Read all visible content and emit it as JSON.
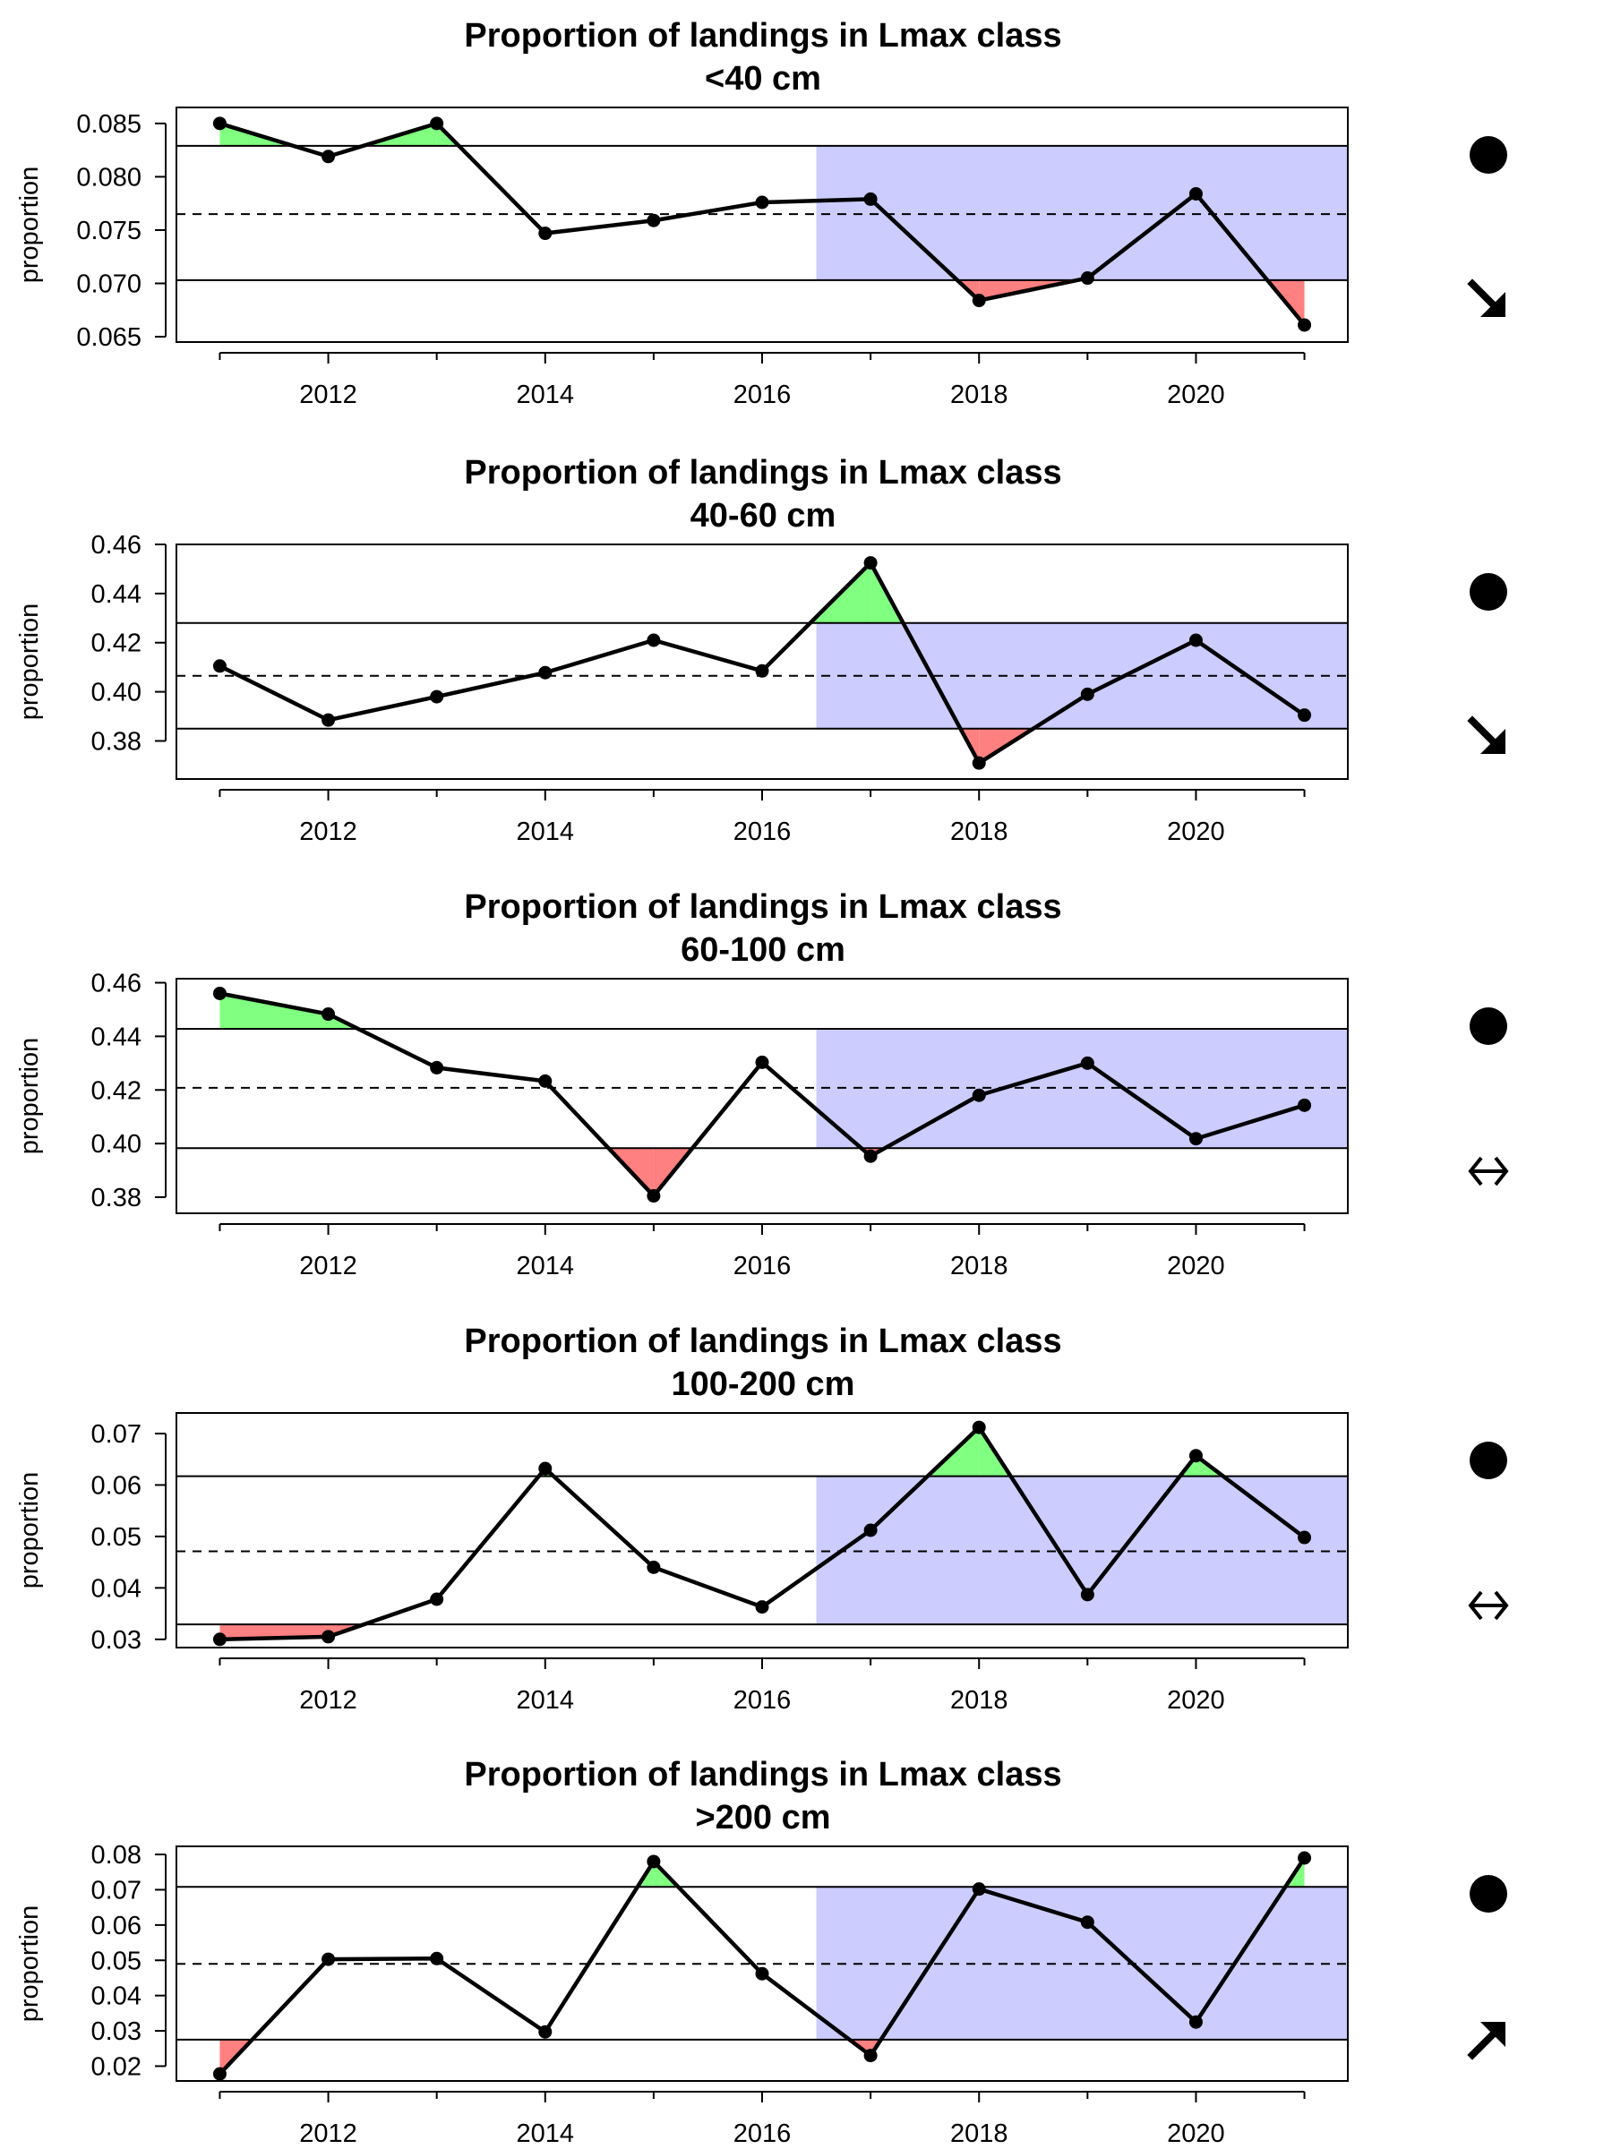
{
  "chart_data": [
    {
      "type": "line",
      "title": "Proportion of landings in Lmax class",
      "subtitle": "<40 cm",
      "ylabel": "proportion",
      "x": [
        2011,
        2012,
        2013,
        2014,
        2015,
        2016,
        2017,
        2018,
        2019,
        2020,
        2021
      ],
      "values": [
        0.085,
        0.0819,
        0.085,
        0.0747,
        0.0759,
        0.0776,
        0.0779,
        0.0684,
        0.0705,
        0.0784,
        0.0661
      ],
      "mean": 0.0765,
      "upper": 0.0829,
      "lower": 0.0703,
      "ylim": [
        0.0645,
        0.0865
      ],
      "yticks": [
        "0.085",
        "0.080",
        "0.075",
        "0.070",
        "0.065"
      ],
      "ytick_values": [
        0.085,
        0.08,
        0.075,
        0.07,
        0.065
      ],
      "xticks": [
        "2012",
        "2014",
        "2016",
        "2018",
        "2020"
      ],
      "xtick_values": [
        2012,
        2014,
        2016,
        2018,
        2020
      ],
      "shade_from": 2016.5,
      "status_icon": "filled-circle",
      "trend_icon": "arrow-down-right-icon"
    },
    {
      "type": "line",
      "title": "Proportion of landings in Lmax class",
      "subtitle": "40-60 cm",
      "ylabel": "proportion",
      "x": [
        2011,
        2012,
        2013,
        2014,
        2015,
        2016,
        2017,
        2018,
        2019,
        2020,
        2021
      ],
      "values": [
        0.4105,
        0.3885,
        0.398,
        0.4078,
        0.421,
        0.4085,
        0.4525,
        0.371,
        0.399,
        0.421,
        0.3905
      ],
      "mean": 0.4065,
      "upper": 0.428,
      "lower": 0.385,
      "ylim": [
        0.3645,
        0.46
      ],
      "yticks": [
        "0.46",
        "0.44",
        "0.42",
        "0.40",
        "0.38"
      ],
      "ytick_values": [
        0.46,
        0.44,
        0.42,
        0.4,
        0.38
      ],
      "xticks": [
        "2012",
        "2014",
        "2016",
        "2018",
        "2020"
      ],
      "xtick_values": [
        2012,
        2014,
        2016,
        2018,
        2020
      ],
      "shade_from": 2016.5,
      "status_icon": "filled-circle",
      "trend_icon": "arrow-down-right-icon"
    },
    {
      "type": "line",
      "title": "Proportion of landings in Lmax class",
      "subtitle": "60-100 cm",
      "ylabel": "proportion",
      "x": [
        2011,
        2012,
        2013,
        2014,
        2015,
        2016,
        2017,
        2018,
        2019,
        2020,
        2021
      ],
      "values": [
        0.456,
        0.4483,
        0.4283,
        0.4233,
        0.3805,
        0.4303,
        0.3953,
        0.418,
        0.43,
        0.4018,
        0.4143
      ],
      "mean": 0.4208,
      "upper": 0.4428,
      "lower": 0.3983,
      "ylim": [
        0.374,
        0.4615
      ],
      "yticks": [
        "0.46",
        "0.44",
        "0.42",
        "0.40",
        "0.38"
      ],
      "ytick_values": [
        0.46,
        0.44,
        0.42,
        0.4,
        0.38
      ],
      "xticks": [
        "2012",
        "2014",
        "2016",
        "2018",
        "2020"
      ],
      "xtick_values": [
        2012,
        2014,
        2016,
        2018,
        2020
      ],
      "shade_from": 2016.5,
      "status_icon": "filled-circle",
      "trend_icon": "no-trend-arrows-icon"
    },
    {
      "type": "line",
      "title": "Proportion of landings in Lmax class",
      "subtitle": "100-200 cm",
      "ylabel": "proportion",
      "x": [
        2011,
        2012,
        2013,
        2014,
        2015,
        2016,
        2017,
        2018,
        2019,
        2020,
        2021
      ],
      "values": [
        0.03,
        0.0305,
        0.0378,
        0.0632,
        0.044,
        0.0363,
        0.0512,
        0.0712,
        0.0387,
        0.0657,
        0.0498
      ],
      "mean": 0.0471,
      "upper": 0.0617,
      "lower": 0.0329,
      "ylim": [
        0.0284,
        0.074
      ],
      "yticks": [
        "0.07",
        "0.06",
        "0.05",
        "0.04",
        "0.03"
      ],
      "ytick_values": [
        0.07,
        0.06,
        0.05,
        0.04,
        0.03
      ],
      "xticks": [
        "2012",
        "2014",
        "2016",
        "2018",
        "2020"
      ],
      "xtick_values": [
        2012,
        2014,
        2016,
        2018,
        2020
      ],
      "shade_from": 2016.5,
      "status_icon": "filled-circle",
      "trend_icon": "no-trend-arrows-icon"
    },
    {
      "type": "line",
      "title": "Proportion of landings in Lmax class",
      "subtitle": ">200 cm",
      "ylabel": "proportion",
      "x": [
        2011,
        2012,
        2013,
        2014,
        2015,
        2016,
        2017,
        2018,
        2019,
        2020,
        2021
      ],
      "values": [
        0.0178,
        0.0503,
        0.0505,
        0.0297,
        0.078,
        0.0462,
        0.023,
        0.0702,
        0.0608,
        0.0325,
        0.079
      ],
      "mean": 0.049,
      "upper": 0.0708,
      "lower": 0.0275,
      "ylim": [
        0.0158,
        0.0823
      ],
      "yticks": [
        "0.08",
        "0.07",
        "0.06",
        "0.05",
        "0.04",
        "0.03",
        "0.02"
      ],
      "ytick_values": [
        0.08,
        0.07,
        0.06,
        0.05,
        0.04,
        0.03,
        0.02
      ],
      "xticks": [
        "2012",
        "2014",
        "2016",
        "2018",
        "2020"
      ],
      "xtick_values": [
        2012,
        2014,
        2016,
        2018,
        2020
      ],
      "shade_from": 2016.5,
      "status_icon": "filled-circle",
      "trend_icon": "arrow-up-right-icon"
    }
  ],
  "colors": {
    "recent_shade": "#ccccff",
    "above_fill": "#80ff80",
    "below_fill": "#ff8080",
    "line": "#000000"
  }
}
